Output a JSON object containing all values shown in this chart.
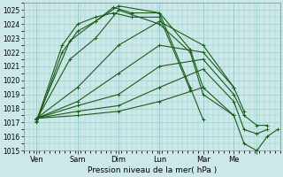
{
  "xlabel": "Pression niveau de la mer( hPa )",
  "ylim": [
    1015,
    1025.5
  ],
  "xlim": [
    0,
    100
  ],
  "yticks": [
    1015,
    1016,
    1017,
    1018,
    1019,
    1020,
    1021,
    1022,
    1023,
    1024,
    1025
  ],
  "xtick_positions": [
    5,
    21,
    37,
    53,
    70,
    82,
    91
  ],
  "xtick_labels": [
    "Ven",
    "Sam",
    "Dim",
    "Lun",
    "Mar",
    "Me",
    ""
  ],
  "vlines": [
    5,
    21,
    37,
    53,
    70,
    82
  ],
  "bg_color": "#cce8e8",
  "grid_color": "#99cccc",
  "line_color": "#1a5c1a",
  "lines": [
    {
      "x": [
        5,
        15,
        21,
        28,
        35,
        42,
        53,
        65
      ],
      "y": [
        1017.1,
        1022.5,
        1024.0,
        1024.5,
        1024.8,
        1024.5,
        1024.5,
        1019.3
      ]
    },
    {
      "x": [
        5,
        15,
        21,
        28,
        35,
        42,
        53,
        65,
        70
      ],
      "y": [
        1017.0,
        1022.0,
        1023.5,
        1024.2,
        1025.2,
        1024.8,
        1024.8,
        1019.5,
        1017.2
      ]
    },
    {
      "x": [
        5,
        18,
        28,
        37,
        53,
        65,
        70
      ],
      "y": [
        1017.2,
        1022.8,
        1024.2,
        1025.3,
        1024.8,
        1022.2,
        1019.5
      ]
    },
    {
      "x": [
        5,
        18,
        28,
        37,
        53,
        65,
        70,
        82
      ],
      "y": [
        1017.2,
        1021.5,
        1023.0,
        1025.0,
        1024.0,
        1022.0,
        1019.0,
        1017.5
      ]
    },
    {
      "x": [
        5,
        21,
        37,
        53,
        70,
        82
      ],
      "y": [
        1017.3,
        1019.5,
        1022.5,
        1024.2,
        1022.5,
        1019.5
      ]
    },
    {
      "x": [
        5,
        21,
        37,
        53,
        70,
        82,
        86
      ],
      "y": [
        1017.3,
        1018.5,
        1020.5,
        1022.5,
        1022.0,
        1019.5,
        1017.8
      ]
    },
    {
      "x": [
        5,
        21,
        37,
        53,
        70,
        82,
        86,
        91,
        95
      ],
      "y": [
        1017.3,
        1018.2,
        1019.0,
        1021.0,
        1021.5,
        1019.0,
        1017.5,
        1016.8,
        1016.8
      ]
    },
    {
      "x": [
        5,
        21,
        37,
        53,
        70,
        82,
        86,
        91,
        95
      ],
      "y": [
        1017.3,
        1017.8,
        1018.2,
        1019.5,
        1020.8,
        1018.5,
        1016.5,
        1016.2,
        1016.5
      ]
    },
    {
      "x": [
        5,
        21,
        37,
        53,
        70,
        82,
        86,
        91,
        95,
        99
      ],
      "y": [
        1017.3,
        1017.5,
        1017.8,
        1018.5,
        1019.5,
        1017.5,
        1015.5,
        1015.0,
        1016.0,
        1016.5
      ]
    }
  ],
  "marker": "+",
  "markersize": 2.5,
  "linewidth": 0.8,
  "figsize": [
    3.2,
    2.0
  ],
  "dpi": 100
}
